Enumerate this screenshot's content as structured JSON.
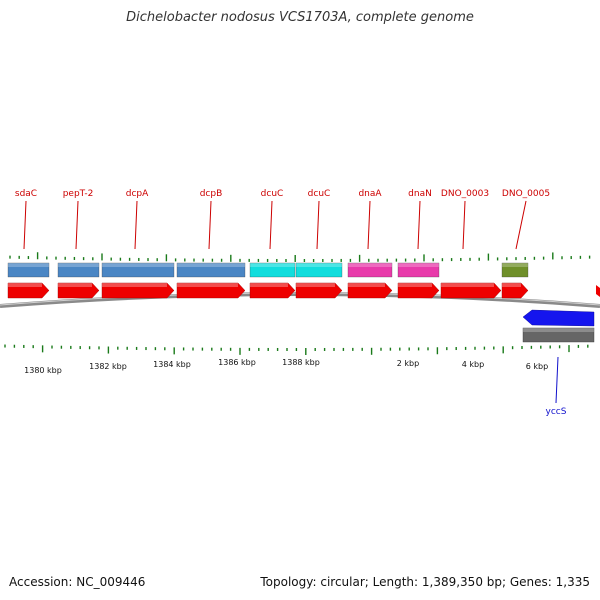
{
  "title": "Dichelobacter nodosus VCS1703A, complete genome",
  "footer": {
    "accession": "Accession: NC_009446",
    "info": "Topology: circular; Length: 1,389,350 bp; Genes: 1,335"
  },
  "colors": {
    "cds": "#ee0000",
    "blue_feature": "#4a86c4",
    "cyan_feature": "#11dddd",
    "magenta_feature": "#e83aaa",
    "olive_feature": "#6f8f2a",
    "reverse_cds": "#1515ee",
    "reverse_track": "#666666",
    "forward_label": "#cc0000",
    "reverse_label": "#1010cc",
    "tick": "#1a7a1a"
  },
  "genes_forward": [
    {
      "name": "sdaC",
      "feature_color": "blue_feature"
    },
    {
      "name": "pepT-2",
      "feature_color": "blue_feature"
    },
    {
      "name": "dcpA",
      "feature_color": "blue_feature"
    },
    {
      "name": "dcpB",
      "feature_color": "blue_feature"
    },
    {
      "name": "dcuC",
      "feature_color": "cyan_feature"
    },
    {
      "name": "dcuC",
      "feature_color": "cyan_feature"
    },
    {
      "name": "dnaA",
      "feature_color": "magenta_feature"
    },
    {
      "name": "dnaN",
      "feature_color": "magenta_feature"
    },
    {
      "name": "DNO_0003",
      "feature_color": null
    },
    {
      "name": "DNO_0005",
      "feature_color": "olive_feature"
    }
  ],
  "genes_reverse": [
    {
      "name": "yccS"
    }
  ],
  "scale_labels": [
    "1380 kbp",
    "1382 kbp",
    "1384 kbp",
    "1386 kbp",
    "1388 kbp",
    "2 kbp",
    "4 kbp",
    "6 kbp"
  ]
}
